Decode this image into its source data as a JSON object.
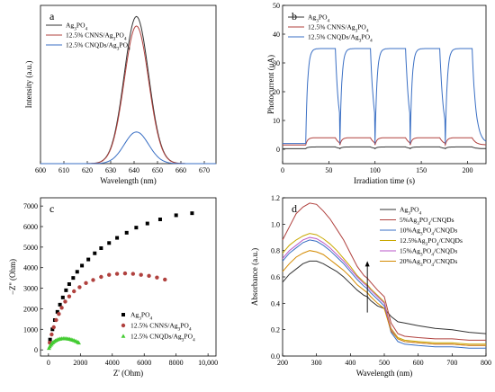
{
  "chart_data": [
    {
      "type": "line",
      "panel_label": "a",
      "xlabel": "Wavelength (nm)",
      "ylabel": "Intensity (a.u.)",
      "xlim": [
        600,
        675
      ],
      "ylim": [
        0,
        1
      ],
      "xticks": [
        "600",
        "610",
        "620",
        "630",
        "640",
        "650",
        "660",
        "670"
      ],
      "xtick_values": [
        600,
        610,
        620,
        630,
        640,
        650,
        660,
        670
      ],
      "legend_position": "top-left",
      "series": [
        {
          "name": "Ag3PO4",
          "color": "#333333",
          "peak": 0.93,
          "center": 641,
          "width": 5.2
        },
        {
          "name": "12.5% CNNS/Ag3PO4",
          "color": "#b0413e",
          "peak": 0.87,
          "center": 641,
          "width": 5.2
        },
        {
          "name": "12.5% CNQDs/Ag3PO4",
          "color": "#3a6fc4",
          "peak": 0.2,
          "center": 641,
          "width": 5.2
        }
      ],
      "baseline": 0.0
    },
    {
      "type": "line",
      "panel_label": "b",
      "xlabel": "Irradiation time (s)",
      "ylabel": "Photocurrent (μA)",
      "xlim": [
        0,
        220
      ],
      "ylim": [
        -5,
        50
      ],
      "xticks": [
        "0",
        "50",
        "100",
        "150",
        "200"
      ],
      "xtick_values": [
        0,
        50,
        100,
        150,
        200
      ],
      "yticks": [
        "0",
        "10",
        "20",
        "30",
        "40",
        "50"
      ],
      "ytick_values": [
        0,
        10,
        20,
        30,
        40,
        50
      ],
      "legend_position": "top-left",
      "on_periods": [
        [
          25,
          57
        ],
        [
          62,
          95
        ],
        [
          100,
          133
        ],
        [
          138,
          170
        ],
        [
          176,
          205
        ]
      ],
      "series": [
        {
          "name": "Ag3PO4",
          "color": "#333333",
          "baseline": 0.2,
          "on_level": 0.8
        },
        {
          "name": "12.5% CNNS/Ag3PO4",
          "color": "#b0413e",
          "baseline": 1.5,
          "on_level": 4.0
        },
        {
          "name": "12.5% CNQDs/Ag3PO4",
          "color": "#3a6fc4",
          "baseline": 2.0,
          "on_level": 35.0
        }
      ]
    },
    {
      "type": "scatter",
      "panel_label": "c",
      "xlabel": "Z' (Ohm)",
      "ylabel": "−Z'' (Ohm)",
      "xlim": [
        -500,
        10500
      ],
      "ylim": [
        -300,
        7400
      ],
      "xticks": [
        "0",
        "2000",
        "4000",
        "6000",
        "8000",
        "10,000"
      ],
      "xtick_values": [
        0,
        2000,
        4000,
        6000,
        8000,
        10000
      ],
      "yticks": [
        "0",
        "1000",
        "2000",
        "3000",
        "4000",
        "5000",
        "6000",
        "7000"
      ],
      "ytick_values": [
        0,
        1000,
        2000,
        3000,
        4000,
        5000,
        6000,
        7000
      ],
      "legend_position": "bottom-right",
      "series": [
        {
          "name": "Ag3PO4",
          "color": "#000000",
          "marker": "square",
          "x": [
            100,
            250,
            400,
            560,
            720,
            900,
            1100,
            1300,
            1550,
            1800,
            2100,
            2500,
            2900,
            3300,
            3800,
            4300,
            4900,
            5500,
            6200,
            7000,
            8000,
            9000
          ],
          "y": [
            500,
            1000,
            1450,
            1850,
            2200,
            2550,
            2900,
            3200,
            3500,
            3800,
            4100,
            4400,
            4700,
            4950,
            5200,
            5450,
            5700,
            5950,
            6150,
            6350,
            6550,
            6650
          ]
        },
        {
          "name": "12.5% CNNS/Ag3PO4",
          "color": "#b0413e",
          "marker": "circle",
          "x": [
            80,
            200,
            330,
            480,
            650,
            830,
            1050,
            1300,
            1600,
            1950,
            2350,
            2800,
            3300,
            3800,
            4300,
            4800,
            5300,
            5800,
            6300,
            6800,
            7300
          ],
          "y": [
            350,
            750,
            1100,
            1450,
            1750,
            2050,
            2350,
            2600,
            2850,
            3050,
            3250,
            3400,
            3550,
            3650,
            3700,
            3720,
            3700,
            3650,
            3600,
            3520,
            3420
          ]
        },
        {
          "name": "12.5% CNQDs/Ag3PO4",
          "color": "#44cc33",
          "marker": "triangle",
          "x": [
            30,
            80,
            140,
            200,
            270,
            350,
            430,
            520,
            620,
            720,
            820,
            920,
            1020,
            1120,
            1220,
            1320,
            1420,
            1520,
            1620,
            1720,
            1820,
            1900
          ],
          "y": [
            80,
            160,
            230,
            290,
            350,
            400,
            440,
            480,
            510,
            530,
            545,
            550,
            550,
            545,
            535,
            520,
            500,
            480,
            450,
            420,
            380,
            340
          ]
        }
      ]
    },
    {
      "type": "line",
      "panel_label": "d",
      "xlabel": "Wavelength (nm)",
      "ylabel": "Absorbance (a.u.)",
      "xlim": [
        200,
        800
      ],
      "ylim": [
        0,
        1.2
      ],
      "xticks": [
        "200",
        "300",
        "400",
        "500",
        "600",
        "700",
        "800"
      ],
      "xtick_values": [
        200,
        300,
        400,
        500,
        600,
        700,
        800
      ],
      "yticks": [
        "0.0",
        "0.2",
        "0.4",
        "0.6",
        "0.8",
        "1.0",
        "1.2"
      ],
      "ytick_values": [
        0,
        0.2,
        0.4,
        0.6,
        0.8,
        1.0,
        1.2
      ],
      "legend_position": "top-right",
      "x": [
        200,
        220,
        240,
        260,
        280,
        300,
        320,
        340,
        360,
        380,
        400,
        420,
        440,
        450,
        460,
        480,
        500,
        520,
        540,
        560,
        600,
        650,
        700,
        750,
        800
      ],
      "series": [
        {
          "name": "Ag3PO4",
          "color": "#333333",
          "values": [
            0.56,
            0.62,
            0.66,
            0.7,
            0.72,
            0.72,
            0.7,
            0.67,
            0.64,
            0.6,
            0.55,
            0.5,
            0.46,
            0.45,
            0.42,
            0.38,
            0.36,
            0.3,
            0.26,
            0.25,
            0.23,
            0.21,
            0.2,
            0.18,
            0.17
          ]
        },
        {
          "name": "5%Ag3PO4/CNQDs",
          "color": "#b0413e",
          "values": [
            0.88,
            0.98,
            1.08,
            1.13,
            1.16,
            1.15,
            1.1,
            1.04,
            0.96,
            0.88,
            0.78,
            0.68,
            0.61,
            0.59,
            0.56,
            0.5,
            0.45,
            0.25,
            0.17,
            0.15,
            0.14,
            0.13,
            0.13,
            0.12,
            0.12
          ]
        },
        {
          "name": "10%Ag3PO4/CNQDs",
          "color": "#3a6fc4",
          "values": [
            0.72,
            0.78,
            0.82,
            0.86,
            0.88,
            0.87,
            0.84,
            0.8,
            0.75,
            0.7,
            0.64,
            0.58,
            0.53,
            0.51,
            0.48,
            0.43,
            0.38,
            0.18,
            0.11,
            0.09,
            0.08,
            0.07,
            0.07,
            0.06,
            0.06
          ]
        },
        {
          "name": "12.5%Ag3PO4/CNQDs",
          "color": "#c9a800",
          "values": [
            0.78,
            0.84,
            0.88,
            0.91,
            0.93,
            0.92,
            0.89,
            0.85,
            0.8,
            0.74,
            0.68,
            0.61,
            0.56,
            0.54,
            0.51,
            0.46,
            0.41,
            0.21,
            0.14,
            0.12,
            0.11,
            0.1,
            0.1,
            0.09,
            0.09
          ]
        },
        {
          "name": "15%Ag3PO4/CNQDs",
          "color": "#b855c8",
          "values": [
            0.74,
            0.8,
            0.84,
            0.88,
            0.9,
            0.89,
            0.86,
            0.82,
            0.77,
            0.72,
            0.66,
            0.6,
            0.55,
            0.53,
            0.5,
            0.45,
            0.4,
            0.2,
            0.13,
            0.11,
            0.1,
            0.09,
            0.09,
            0.08,
            0.08
          ]
        },
        {
          "name": "20%Ag3PO4/CNQDs",
          "color": "#d48a00",
          "values": [
            0.64,
            0.7,
            0.75,
            0.78,
            0.8,
            0.79,
            0.77,
            0.73,
            0.69,
            0.65,
            0.6,
            0.54,
            0.5,
            0.48,
            0.45,
            0.4,
            0.36,
            0.19,
            0.13,
            0.11,
            0.1,
            0.09,
            0.09,
            0.08,
            0.08
          ]
        }
      ],
      "arrow_x": 450,
      "arrow_from": 0.33,
      "arrow_to": 0.72
    }
  ]
}
